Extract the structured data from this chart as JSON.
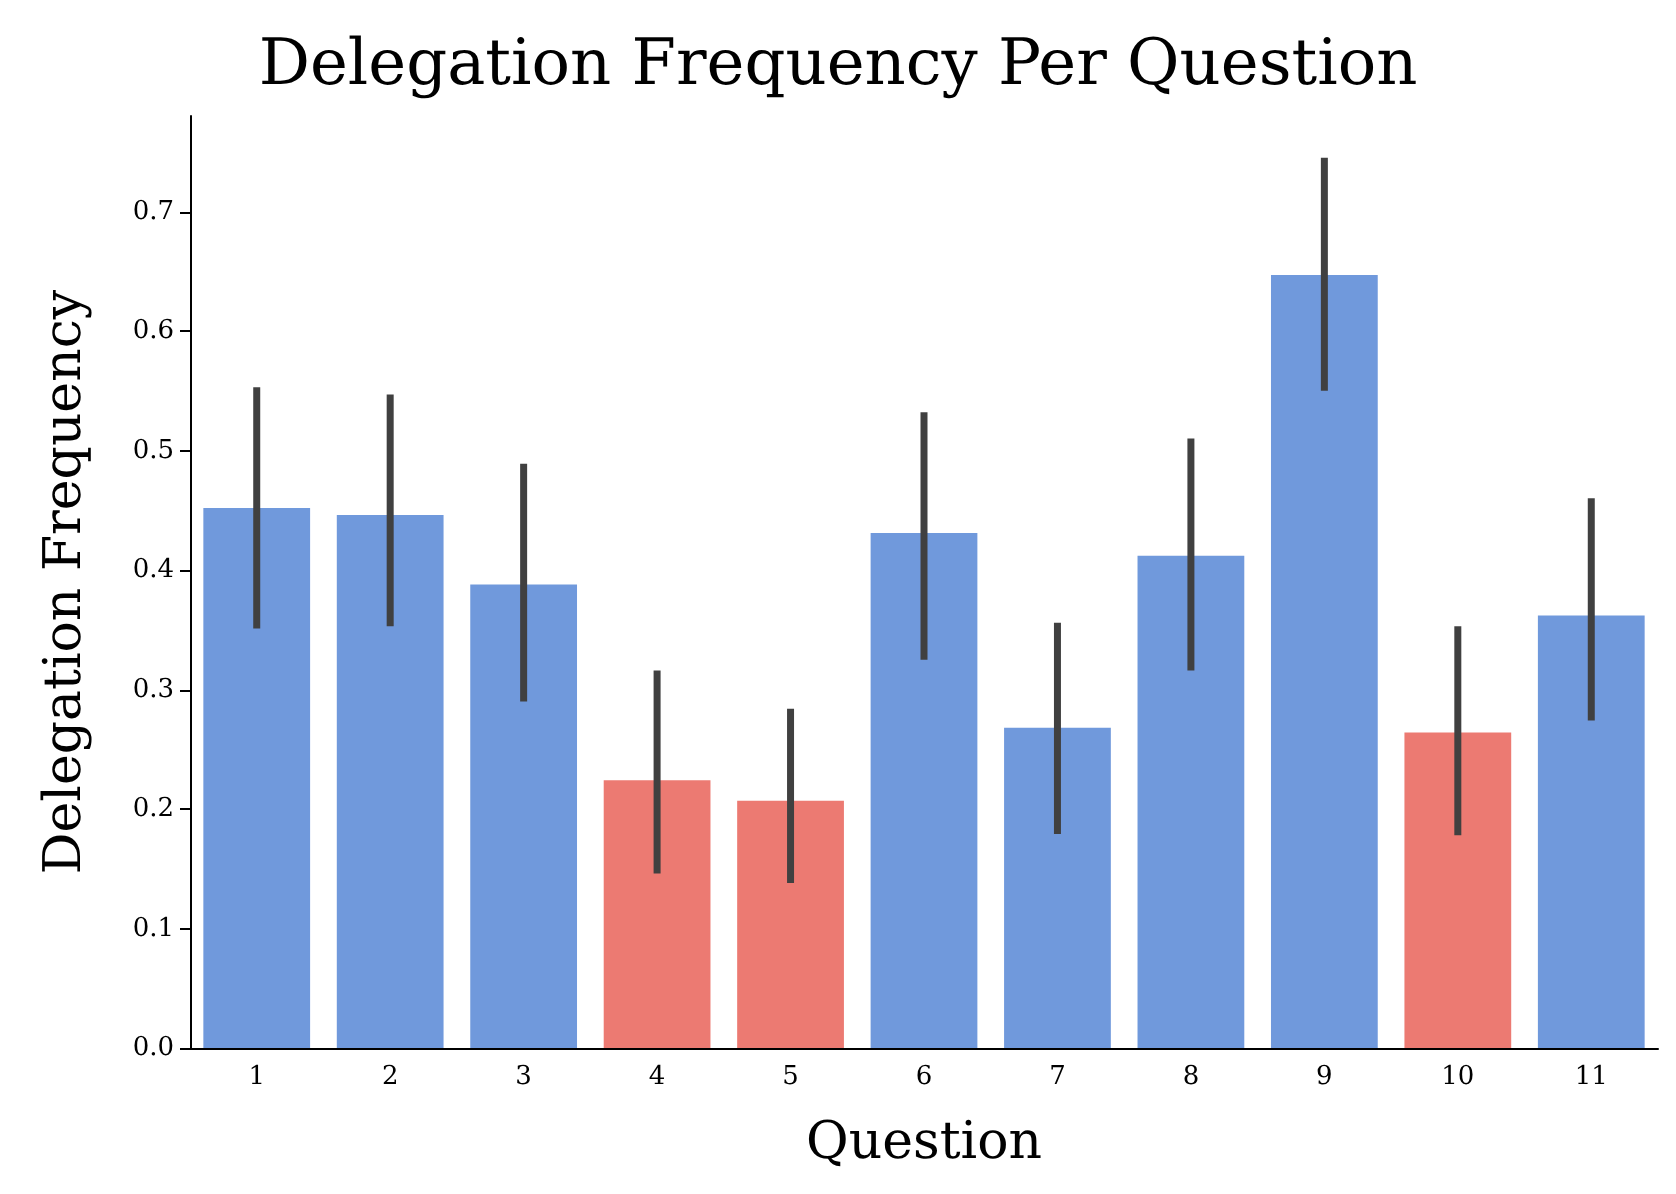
{
  "chart_data": {
    "type": "bar",
    "title": "Delegation Frequency Per Question",
    "xlabel": "Question",
    "ylabel": "Delegation Frequency",
    "categories": [
      "1",
      "2",
      "3",
      "4",
      "5",
      "6",
      "7",
      "8",
      "9",
      "10",
      "11"
    ],
    "values": [
      0.452,
      0.446,
      0.388,
      0.224,
      0.207,
      0.431,
      0.268,
      0.412,
      0.647,
      0.264,
      0.362
    ],
    "colors": [
      "#7099dc",
      "#7099dc",
      "#7099dc",
      "#ec7a72",
      "#ec7a72",
      "#7099dc",
      "#7099dc",
      "#7099dc",
      "#7099dc",
      "#ec7a72",
      "#7099dc"
    ],
    "errors": [
      [
        0.351,
        0.553
      ],
      [
        0.353,
        0.547
      ],
      [
        0.29,
        0.489
      ],
      [
        0.146,
        0.316
      ],
      [
        0.138,
        0.284
      ],
      [
        0.325,
        0.532
      ],
      [
        0.179,
        0.356
      ],
      [
        0.316,
        0.51
      ],
      [
        0.55,
        0.745
      ],
      [
        0.178,
        0.353
      ],
      [
        0.274,
        0.46
      ]
    ],
    "ylim": [
      0,
      0.78
    ],
    "yticks": [
      {
        "value": 0,
        "label": "0.0"
      },
      {
        "value": 0.1,
        "label": "0.1"
      },
      {
        "value": 0.2,
        "label": "0.2"
      },
      {
        "value": 0.3,
        "label": "0.3"
      },
      {
        "value": 0.4,
        "label": "0.4"
      },
      {
        "value": 0.5,
        "label": "0.5"
      },
      {
        "value": 0.6,
        "label": "0.6"
      },
      {
        "value": 0.7,
        "label": "0.7"
      }
    ],
    "grid": false
  }
}
